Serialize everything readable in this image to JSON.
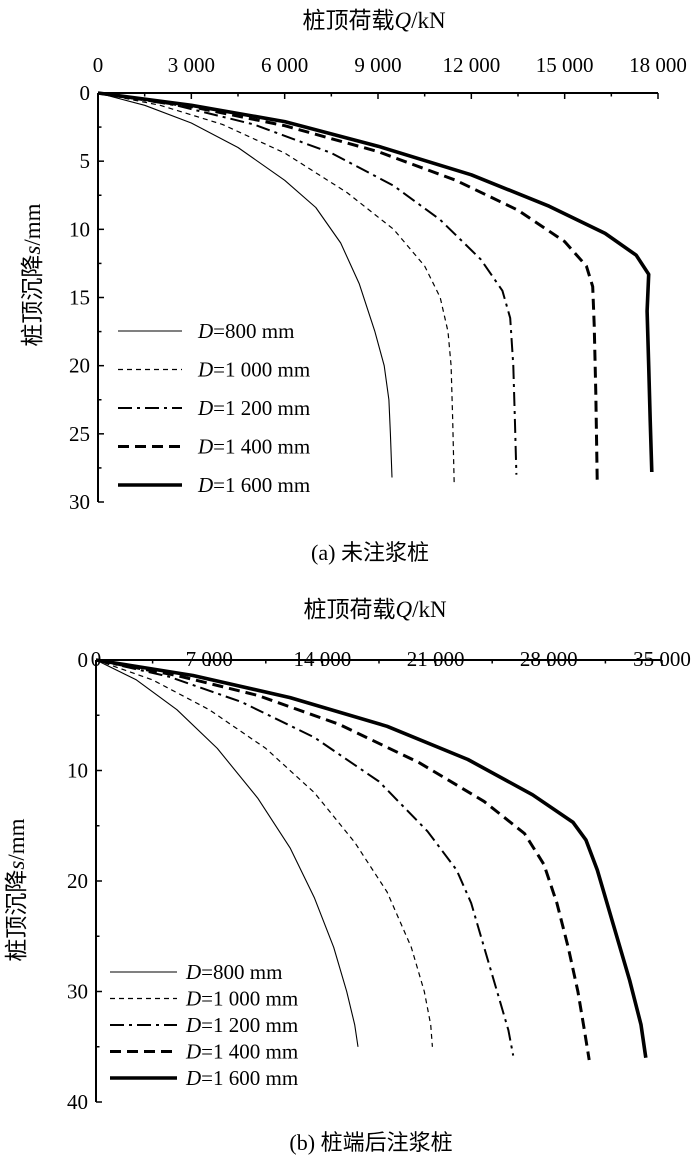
{
  "chart_data": [
    {
      "type": "line",
      "caption": "(a) 未注浆桩",
      "xlabel_prefix": "桩顶荷载",
      "xlabel_var": "Q",
      "xlabel_unit": "/kN",
      "ylabel_prefix": "桩顶沉降",
      "ylabel_var": "s",
      "ylabel_unit": "/mm",
      "xlim": [
        0,
        18000
      ],
      "ylim": [
        0,
        30
      ],
      "x_ticks": [
        0,
        3000,
        6000,
        9000,
        12000,
        15000,
        18000
      ],
      "x_tick_labels": [
        "0",
        "3 000",
        "6 000",
        "9 000",
        "12 000",
        "15 000",
        "18 000"
      ],
      "y_ticks": [
        0,
        5,
        10,
        15,
        20,
        25,
        30
      ],
      "y_tick_labels": [
        "0",
        "5",
        "10",
        "15",
        "20",
        "25",
        "30"
      ],
      "x_axis_position": "top",
      "y_reversed": true,
      "legend_position": "bottom-left",
      "series": [
        {
          "name": "D=800 mm",
          "name_var": "D",
          "name_rest": "=800 mm",
          "style": "solid-thin",
          "points": [
            [
              0,
              0
            ],
            [
              1500,
              0.9
            ],
            [
              3000,
              2.2
            ],
            [
              4500,
              4.0
            ],
            [
              6000,
              6.4
            ],
            [
              7000,
              8.4
            ],
            [
              7800,
              11.0
            ],
            [
              8400,
              14.0
            ],
            [
              8900,
              17.5
            ],
            [
              9200,
              20.0
            ],
            [
              9350,
              22.5
            ],
            [
              9400,
              25.0
            ],
            [
              9450,
              28.2
            ]
          ]
        },
        {
          "name": "D=1 000 mm",
          "name_var": "D",
          "name_rest": "=1 000 mm",
          "style": "dash-short",
          "points": [
            [
              0,
              0
            ],
            [
              2000,
              0.9
            ],
            [
              4000,
              2.3
            ],
            [
              6000,
              4.4
            ],
            [
              8000,
              7.3
            ],
            [
              9500,
              10.0
            ],
            [
              10500,
              12.7
            ],
            [
              11000,
              15.0
            ],
            [
              11250,
              17.5
            ],
            [
              11350,
              20.0
            ],
            [
              11400,
              24.0
            ],
            [
              11450,
              28.7
            ]
          ]
        },
        {
          "name": "D=1 200 mm",
          "name_var": "D",
          "name_rest": "=1 200 mm",
          "style": "dash-dot",
          "points": [
            [
              0,
              0
            ],
            [
              2500,
              0.9
            ],
            [
              5000,
              2.3
            ],
            [
              7500,
              4.4
            ],
            [
              9500,
              6.8
            ],
            [
              11000,
              9.3
            ],
            [
              12300,
              12.2
            ],
            [
              13000,
              14.5
            ],
            [
              13250,
              16.5
            ],
            [
              13350,
              20.0
            ],
            [
              13400,
              24.0
            ],
            [
              13450,
              28.0
            ]
          ]
        },
        {
          "name": "D=1 400 mm",
          "name_var": "D",
          "name_rest": "=1 400 mm",
          "style": "dash-long",
          "points": [
            [
              0,
              0
            ],
            [
              3000,
              1.0
            ],
            [
              6000,
              2.4
            ],
            [
              9000,
              4.3
            ],
            [
              11500,
              6.4
            ],
            [
              13500,
              8.6
            ],
            [
              15000,
              10.9
            ],
            [
              15700,
              12.7
            ],
            [
              15900,
              14.2
            ],
            [
              15950,
              17.0
            ],
            [
              16000,
              22.0
            ],
            [
              16050,
              28.8
            ]
          ]
        },
        {
          "name": "D=1 600 mm",
          "name_var": "D",
          "name_rest": "=1 600 mm",
          "style": "solid-thick",
          "points": [
            [
              0,
              0
            ],
            [
              3000,
              0.9
            ],
            [
              6000,
              2.1
            ],
            [
              9000,
              3.9
            ],
            [
              12000,
              6.0
            ],
            [
              14500,
              8.3
            ],
            [
              16300,
              10.3
            ],
            [
              17300,
              11.9
            ],
            [
              17700,
              13.3
            ],
            [
              17650,
              16.0
            ],
            [
              17700,
              20.0
            ],
            [
              17750,
              24.0
            ],
            [
              17800,
              27.8
            ]
          ]
        }
      ]
    },
    {
      "type": "line",
      "caption": "(b) 桩端后注浆桩",
      "xlabel_prefix": "桩顶荷载",
      "xlabel_var": "Q",
      "xlabel_unit": "/kN",
      "ylabel_prefix": "桩顶沉降",
      "ylabel_var": "s",
      "ylabel_unit": "/mm",
      "xlim": [
        0,
        35000
      ],
      "ylim": [
        0,
        40
      ],
      "x_ticks": [
        0,
        7000,
        14000,
        21000,
        28000,
        35000
      ],
      "x_tick_labels": [
        "0",
        "7 000",
        "14 000",
        "21 000",
        "28 000",
        "35 000"
      ],
      "y_ticks": [
        0,
        10,
        20,
        30,
        40
      ],
      "y_tick_labels": [
        "0",
        "10",
        "20",
        "30",
        "40"
      ],
      "x_axis_position": "top",
      "y_reversed": true,
      "legend_position": "bottom-left",
      "series": [
        {
          "name": "D=800 mm",
          "name_var": "D",
          "name_rest": "=800 mm",
          "style": "solid-thin",
          "points": [
            [
              0,
              0
            ],
            [
              2500,
              1.8
            ],
            [
              5000,
              4.5
            ],
            [
              7500,
              8.0
            ],
            [
              10000,
              12.5
            ],
            [
              12000,
              17.0
            ],
            [
              13500,
              21.5
            ],
            [
              14700,
              26.0
            ],
            [
              15500,
              30.0
            ],
            [
              16000,
              33.0
            ],
            [
              16200,
              35.0
            ]
          ]
        },
        {
          "name": "D=1 000 mm",
          "name_var": "D",
          "name_rest": "=1 000 mm",
          "style": "dash-short",
          "points": [
            [
              0,
              0
            ],
            [
              3500,
              1.8
            ],
            [
              7000,
              4.5
            ],
            [
              10500,
              8.0
            ],
            [
              13500,
              12.0
            ],
            [
              16000,
              16.5
            ],
            [
              18000,
              21.0
            ],
            [
              19500,
              26.0
            ],
            [
              20300,
              30.0
            ],
            [
              20700,
              33.0
            ],
            [
              20800,
              35.0
            ]
          ]
        },
        {
          "name": "D=1 200 mm",
          "name_var": "D",
          "name_rest": "=1 200 mm",
          "style": "dash-dot",
          "points": [
            [
              0,
              0
            ],
            [
              4500,
              1.5
            ],
            [
              9000,
              3.8
            ],
            [
              13500,
              7.0
            ],
            [
              17500,
              11.0
            ],
            [
              20500,
              15.5
            ],
            [
              22300,
              19.0
            ],
            [
              23200,
              22.0
            ],
            [
              24000,
              26.0
            ],
            [
              24800,
              30.0
            ],
            [
              25500,
              33.5
            ],
            [
              25800,
              35.8
            ]
          ]
        },
        {
          "name": "D=1 400 mm",
          "name_var": "D",
          "name_rest": "=1 400 mm",
          "style": "dash-long",
          "points": [
            [
              0,
              0
            ],
            [
              5000,
              1.4
            ],
            [
              10000,
              3.2
            ],
            [
              15000,
              5.8
            ],
            [
              20000,
              9.3
            ],
            [
              24000,
              12.8
            ],
            [
              26500,
              15.7
            ],
            [
              27700,
              18.5
            ],
            [
              28500,
              22.0
            ],
            [
              29200,
              26.0
            ],
            [
              29800,
              30.0
            ],
            [
              30200,
              33.5
            ],
            [
              30500,
              36.2
            ]
          ]
        },
        {
          "name": "D=1 600 mm",
          "name_var": "D",
          "name_rest": "=1 600 mm",
          "style": "solid-thick",
          "points": [
            [
              0,
              0
            ],
            [
              6000,
              1.4
            ],
            [
              12000,
              3.4
            ],
            [
              18000,
              6.0
            ],
            [
              23000,
              9.0
            ],
            [
              27000,
              12.2
            ],
            [
              29500,
              14.7
            ],
            [
              30300,
              16.3
            ],
            [
              31000,
              19.0
            ],
            [
              32000,
              24.0
            ],
            [
              33000,
              29.0
            ],
            [
              33700,
              33.0
            ],
            [
              34000,
              36.0
            ]
          ]
        }
      ]
    }
  ]
}
